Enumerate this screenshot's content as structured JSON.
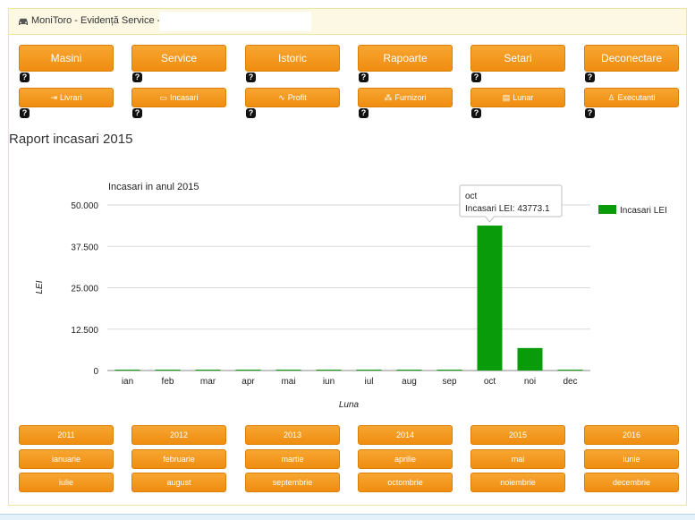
{
  "header": {
    "icon": "car-icon",
    "title": "MoniToro - Evidență Service -",
    "input_value": ""
  },
  "nav": {
    "main": [
      "Masini",
      "Service",
      "Istoric",
      "Rapoarte",
      "Setari",
      "Deconectare"
    ],
    "secondary": [
      {
        "label": "Livrari",
        "icon": "export-icon",
        "glyph": "⇥"
      },
      {
        "label": "Incasari",
        "icon": "money-icon",
        "glyph": "▭"
      },
      {
        "label": "Profit",
        "icon": "line-chart-icon",
        "glyph": "∿"
      },
      {
        "label": "Furnizori",
        "icon": "sitemap-icon",
        "glyph": "⁂"
      },
      {
        "label": "Lunar",
        "icon": "calendar-icon",
        "glyph": "▤"
      },
      {
        "label": "Executanti",
        "icon": "user-icon",
        "glyph": "♙"
      }
    ],
    "help": "?"
  },
  "report": {
    "title": "Raport incasari 2015"
  },
  "tooltip": {
    "month": "oct",
    "text": "Incasari LEI: 43773.1"
  },
  "chart_data": {
    "type": "bar",
    "title": "Incasari in anul 2015",
    "xlabel": "Luna",
    "ylabel": "LEI",
    "categories": [
      "ian",
      "feb",
      "mar",
      "apr",
      "mai",
      "iun",
      "iul",
      "aug",
      "sep",
      "oct",
      "noi",
      "dec"
    ],
    "series": [
      {
        "name": "Incasari LEI",
        "values": [
          0,
          0,
          0,
          0,
          0,
          0,
          0,
          0,
          0,
          43773.1,
          6800,
          0
        ]
      }
    ],
    "ylim": [
      0,
      50000
    ],
    "yticks": [
      "0",
      "12.500",
      "25.000",
      "37.500",
      "50.000"
    ],
    "ytick_values": [
      0,
      12500,
      25000,
      37500,
      50000
    ],
    "grid": true,
    "legend": "top-right",
    "color": "#0a9b0a"
  },
  "filters": {
    "years": [
      "2011",
      "2012",
      "2013",
      "2014",
      "2015",
      "2016"
    ],
    "months_row1": [
      "ianuarie",
      "februarie",
      "martie",
      "aprilie",
      "mai",
      "iunie"
    ],
    "months_row2": [
      "iulie",
      "august",
      "septembrie",
      "octombrie",
      "noiembrie",
      "decembrie"
    ]
  }
}
